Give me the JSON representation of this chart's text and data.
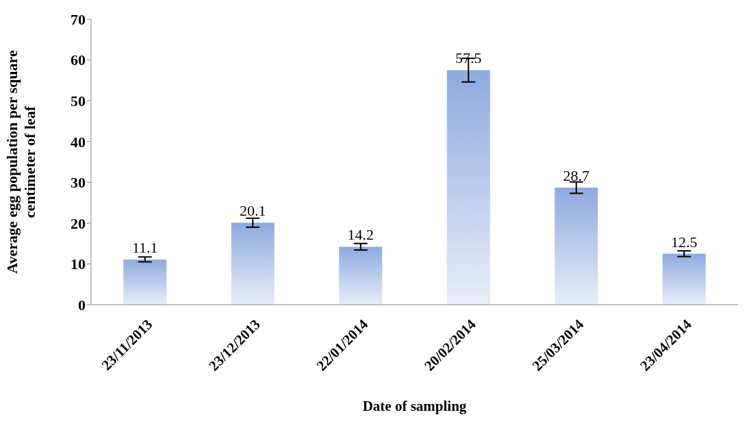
{
  "chart_data": {
    "type": "bar",
    "xlabel": "Date of sampling",
    "ylabel": "Average egg population per square centimeter of leaf",
    "categories": [
      "23/11/2013",
      "23/12/2013",
      "22/01/2014",
      "20/02/2014",
      "25/03/2014",
      "23/04/2014"
    ],
    "values": [
      11.1,
      20.1,
      14.2,
      57.5,
      28.7,
      12.5
    ],
    "errors": [
      0.6,
      1.1,
      0.8,
      2.9,
      1.4,
      0.7
    ],
    "color": "#8eaadf",
    "data_labels": true,
    "ylim": [
      0,
      70
    ],
    "yticks": [
      0,
      10,
      20,
      30,
      40,
      50,
      60,
      70
    ],
    "grid": false,
    "legend": false
  }
}
